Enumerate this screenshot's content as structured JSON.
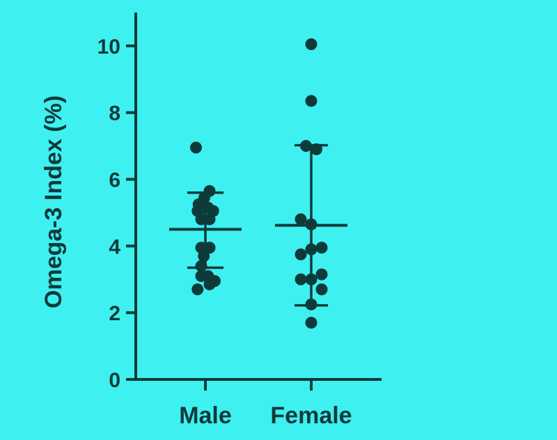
{
  "chart_data": {
    "type": "scatter",
    "title": "",
    "ylabel": "Omega-3  Index (%)",
    "xlabel": "",
    "ylim": [
      0,
      11
    ],
    "yticks": [
      0,
      2,
      4,
      6,
      8,
      10
    ],
    "grid": false,
    "legend": "none",
    "colors": {
      "background": "#3ff0f0",
      "ink": "#0f3a3a"
    },
    "categories": [
      "Male",
      "Female"
    ],
    "series": [
      {
        "category": "Male",
        "points": [
          {
            "x": -0.18,
            "y": 6.95
          },
          {
            "x": -0.13,
            "y": 5.25
          },
          {
            "x": -0.02,
            "y": 5.45
          },
          {
            "x": 0.08,
            "y": 5.65
          },
          {
            "x": -0.15,
            "y": 5.05
          },
          {
            "x": -0.05,
            "y": 5.15
          },
          {
            "x": 0.05,
            "y": 5.15
          },
          {
            "x": 0.15,
            "y": 5.05
          },
          {
            "x": -0.08,
            "y": 4.8
          },
          {
            "x": 0.08,
            "y": 4.8
          },
          {
            "x": -0.08,
            "y": 3.95
          },
          {
            "x": 0.08,
            "y": 3.95
          },
          {
            "x": -0.03,
            "y": 3.7
          },
          {
            "x": -0.08,
            "y": 3.4
          },
          {
            "x": -0.08,
            "y": 3.1
          },
          {
            "x": 0.05,
            "y": 3.1
          },
          {
            "x": 0.18,
            "y": 2.95
          },
          {
            "x": -0.15,
            "y": 2.7
          },
          {
            "x": 0.08,
            "y": 2.85
          }
        ],
        "mean": 4.5,
        "sd_low": 3.35,
        "sd_high": 5.6
      },
      {
        "category": "Female",
        "points": [
          {
            "x": 0.0,
            "y": 10.05
          },
          {
            "x": 0.0,
            "y": 8.35
          },
          {
            "x": -0.1,
            "y": 7.0
          },
          {
            "x": 0.1,
            "y": 6.9
          },
          {
            "x": -0.2,
            "y": 4.8
          },
          {
            "x": 0.0,
            "y": 4.65
          },
          {
            "x": -0.2,
            "y": 3.75
          },
          {
            "x": 0.0,
            "y": 3.9
          },
          {
            "x": 0.2,
            "y": 3.95
          },
          {
            "x": -0.2,
            "y": 3.0
          },
          {
            "x": 0.0,
            "y": 3.0
          },
          {
            "x": 0.2,
            "y": 3.15
          },
          {
            "x": 0.2,
            "y": 2.7
          },
          {
            "x": 0.0,
            "y": 2.25
          },
          {
            "x": 0.0,
            "y": 1.7
          }
        ],
        "mean": 4.62,
        "sd_low": 2.22,
        "sd_high": 7.02
      }
    ]
  }
}
